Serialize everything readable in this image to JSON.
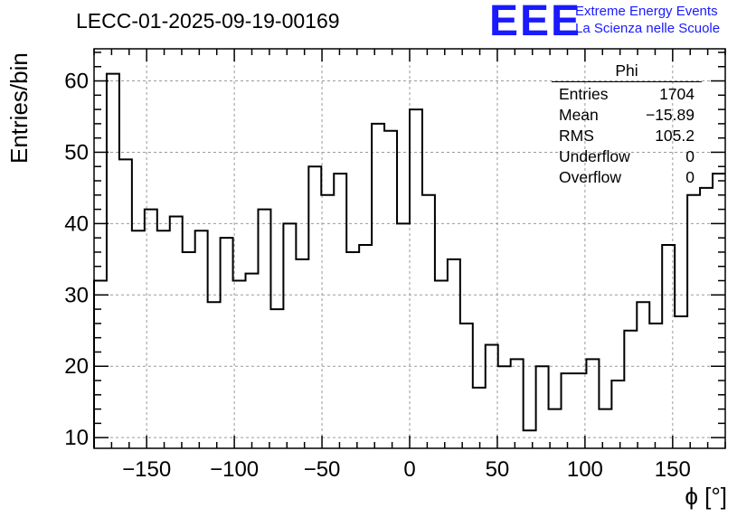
{
  "header": {
    "title": "LECC-01-2025-09-19-00169",
    "logo": "EEE",
    "logo_line1": "Extreme Energy Events",
    "logo_line2": "La Scienza nelle Scuole"
  },
  "stats_box": {
    "title": "Phi",
    "rows": [
      {
        "label": "Entries",
        "value": "1704"
      },
      {
        "label": "Mean",
        "value": "−15.89"
      },
      {
        "label": "RMS",
        "value": "105.2"
      },
      {
        "label": "Underflow",
        "value": "0"
      },
      {
        "label": "Overflow",
        "value": "0"
      }
    ]
  },
  "chart_data": {
    "type": "histogram",
    "title": "LECC-01-2025-09-19-00169",
    "xlabel": "ϕ [°]",
    "ylabel": "Entries/bin",
    "xlim": [
      -180,
      180
    ],
    "ylim": [
      8.5,
      64.5
    ],
    "bin_width": 7.2,
    "bin_edges_start": -180,
    "values": [
      32,
      61,
      49,
      39,
      42,
      39,
      41,
      36,
      39,
      29,
      38,
      32,
      33,
      42,
      28,
      40,
      35,
      48,
      44,
      47,
      36,
      37,
      54,
      53,
      40,
      56,
      44,
      32,
      35,
      26,
      17,
      23,
      20,
      21,
      11,
      20,
      14,
      19,
      19,
      21,
      14,
      18,
      25,
      29,
      26,
      37,
      27,
      44,
      45,
      47
    ],
    "x_ticks": [
      -150,
      -100,
      -50,
      0,
      50,
      100,
      150
    ],
    "y_ticks": [
      10,
      20,
      30,
      40,
      50,
      60
    ],
    "grid": true,
    "line_color": "#000000",
    "grid_color": "#9a9a9a"
  }
}
